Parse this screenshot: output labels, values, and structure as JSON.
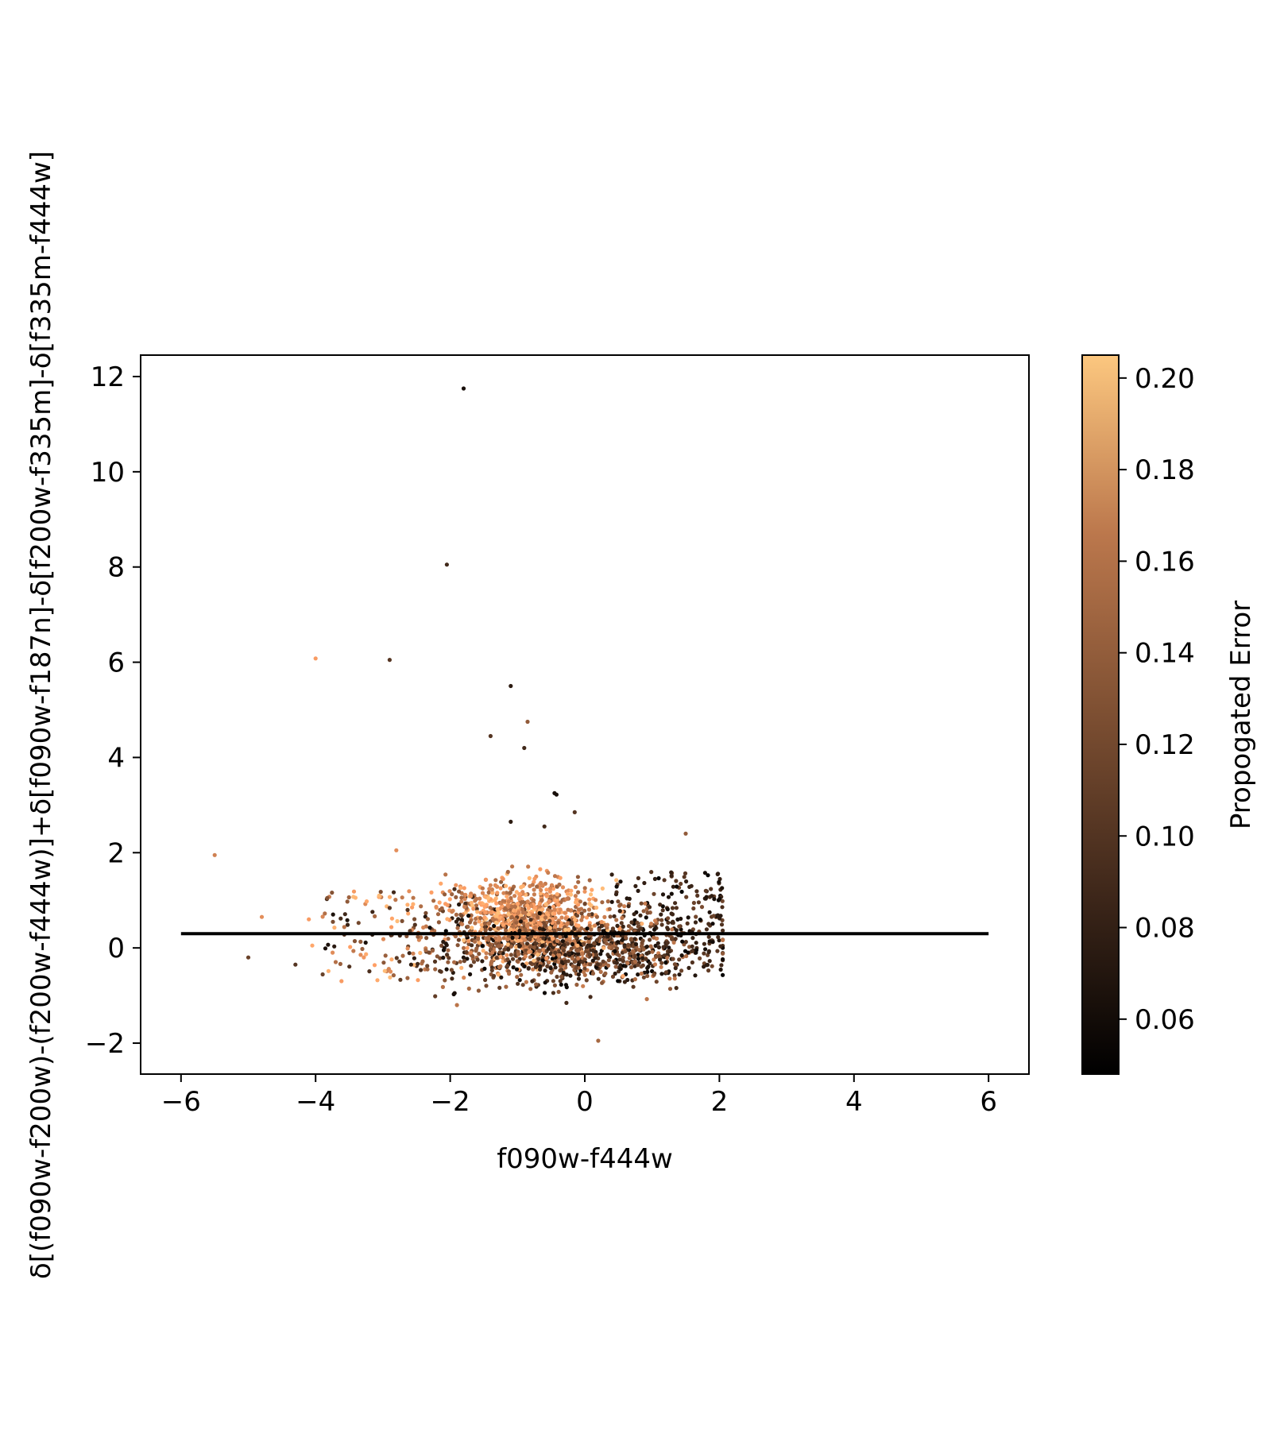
{
  "chart_data": {
    "type": "scatter",
    "xlabel": "f090w-f444w",
    "ylabel": "δ[(f090w-f200w)-(f200w-f444w)]+δ[f090w-f187n]-δ[f200w-f335m]-δ[f335m-f444w]",
    "xlim": [
      -6.6,
      6.6
    ],
    "ylim": [
      -2.65,
      12.45
    ],
    "xticks": [
      -6,
      -4,
      -2,
      0,
      2,
      4,
      6
    ],
    "yticks": [
      -2,
      0,
      2,
      4,
      6,
      8,
      10,
      12
    ],
    "xtick_labels": [
      "−6",
      "−4",
      "−2",
      "0",
      "2",
      "4",
      "6"
    ],
    "ytick_labels": [
      "−2",
      "0",
      "2",
      "4",
      "6",
      "8",
      "10",
      "12"
    ],
    "grid": false,
    "colormap": "copper",
    "colorbar": {
      "label": "Propogated Error",
      "range": [
        0.048,
        0.205
      ],
      "ticks": [
        0.06,
        0.08,
        0.1,
        0.12,
        0.14,
        0.16,
        0.18,
        0.2
      ],
      "tick_labels": [
        "0.06",
        "0.08",
        "0.10",
        "0.12",
        "0.14",
        "0.16",
        "0.18",
        "0.20"
      ]
    },
    "reference_line": {
      "x": [
        -6,
        6
      ],
      "y": [
        0.3,
        0.3
      ],
      "color": "#000000"
    },
    "outlier_points": [
      {
        "x": -1.8,
        "y": 11.75,
        "c": 0.06
      },
      {
        "x": -2.05,
        "y": 8.05,
        "c": 0.08
      },
      {
        "x": -4.0,
        "y": 6.08,
        "c": 0.17
      },
      {
        "x": -2.9,
        "y": 6.05,
        "c": 0.09
      },
      {
        "x": -1.1,
        "y": 5.5,
        "c": 0.07
      },
      {
        "x": -1.4,
        "y": 4.45,
        "c": 0.09
      },
      {
        "x": -0.85,
        "y": 4.75,
        "c": 0.12
      },
      {
        "x": -0.9,
        "y": 4.2,
        "c": 0.08
      },
      {
        "x": -0.45,
        "y": 3.25,
        "c": 0.06
      },
      {
        "x": -0.42,
        "y": 3.22,
        "c": 0.06
      },
      {
        "x": -0.15,
        "y": 2.85,
        "c": 0.09
      },
      {
        "x": -1.1,
        "y": 2.65,
        "c": 0.07
      },
      {
        "x": -0.6,
        "y": 2.55,
        "c": 0.08
      },
      {
        "x": -5.5,
        "y": 1.95,
        "c": 0.15
      },
      {
        "x": -2.8,
        "y": 2.05,
        "c": 0.16
      },
      {
        "x": 1.5,
        "y": 2.4,
        "c": 0.12
      },
      {
        "x": -5.0,
        "y": -0.2,
        "c": 0.1
      },
      {
        "x": -4.3,
        "y": -0.35,
        "c": 0.09
      },
      {
        "x": -4.1,
        "y": 0.6,
        "c": 0.17
      },
      {
        "x": -4.05,
        "y": 0.05,
        "c": 0.18
      },
      {
        "x": -4.8,
        "y": 0.65,
        "c": 0.16
      },
      {
        "x": 0.2,
        "y": -1.95,
        "c": 0.13
      },
      {
        "x": -1.9,
        "y": -1.2,
        "c": 0.14
      }
    ],
    "cluster": {
      "count": 2200,
      "x_range": [
        -4.0,
        2.05
      ],
      "y_range": [
        -1.2,
        2.1
      ],
      "color_range": [
        0.05,
        0.2
      ]
    }
  }
}
